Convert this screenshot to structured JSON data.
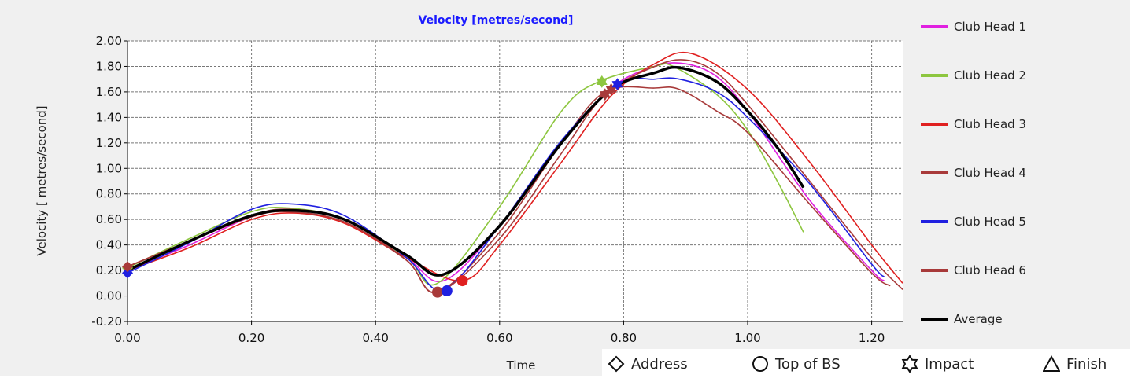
{
  "chart_data": {
    "type": "line",
    "title": "Velocity [metres/second]",
    "xlabel": "Time",
    "ylabel": "Velocity [ metres/second]",
    "xlim": [
      0,
      1.25
    ],
    "ylim": [
      -0.2,
      2.0
    ],
    "xticks": [
      "0.00",
      "0.20",
      "0.40",
      "0.60",
      "0.80",
      "1.00",
      "1.20"
    ],
    "xtick_values": [
      0,
      0.2,
      0.4,
      0.6,
      0.8,
      1.0,
      1.2
    ],
    "yticks": [
      "-0.20",
      "0.00",
      "0.20",
      "0.40",
      "0.60",
      "0.80",
      "1.00",
      "1.20",
      "1.40",
      "1.60",
      "1.80",
      "2.00"
    ],
    "ytick_values": [
      -0.2,
      0,
      0.2,
      0.4,
      0.6,
      0.8,
      1.0,
      1.2,
      1.4,
      1.6,
      1.8,
      2.0
    ],
    "grid": true,
    "legend_position": "right",
    "series": [
      {
        "name": "Club Head 1",
        "color": "#e020e0",
        "x": [
          0,
          0.1,
          0.2,
          0.27,
          0.35,
          0.45,
          0.51,
          0.6,
          0.7,
          0.78,
          0.85,
          0.9,
          0.95,
          1.0,
          1.1,
          1.2,
          1.22
        ],
        "y": [
          0.2,
          0.4,
          0.62,
          0.67,
          0.6,
          0.3,
          0.12,
          0.55,
          1.2,
          1.63,
          1.8,
          1.82,
          1.72,
          1.45,
          0.75,
          0.2,
          0.12
        ]
      },
      {
        "name": "Club Head 2",
        "color": "#8dc63f",
        "x": [
          0,
          0.1,
          0.2,
          0.26,
          0.35,
          0.45,
          0.5,
          0.6,
          0.7,
          0.76,
          0.85,
          0.88,
          0.95,
          1.0,
          1.05,
          1.09
        ],
        "y": [
          0.22,
          0.45,
          0.66,
          0.69,
          0.6,
          0.3,
          0.1,
          0.7,
          1.45,
          1.68,
          1.8,
          1.8,
          1.58,
          1.3,
          0.88,
          0.5
        ]
      },
      {
        "name": "Club Head 3",
        "color": "#e02020",
        "x": [
          0,
          0.1,
          0.2,
          0.27,
          0.35,
          0.45,
          0.54,
          0.6,
          0.7,
          0.78,
          0.85,
          0.91,
          1.0,
          1.1,
          1.2,
          1.25
        ],
        "y": [
          0.2,
          0.38,
          0.6,
          0.65,
          0.57,
          0.3,
          0.12,
          0.4,
          1.05,
          1.57,
          1.82,
          1.9,
          1.62,
          1.05,
          0.4,
          0.1
        ]
      },
      {
        "name": "Club Head 4",
        "color": "#a83a3a",
        "x": [
          0,
          0.1,
          0.2,
          0.26,
          0.35,
          0.45,
          0.5,
          0.6,
          0.7,
          0.77,
          0.85,
          0.89,
          0.95,
          1.0,
          1.1,
          1.2,
          1.23
        ],
        "y": [
          0.23,
          0.43,
          0.62,
          0.66,
          0.58,
          0.28,
          0.03,
          0.5,
          1.2,
          1.6,
          1.63,
          1.62,
          1.45,
          1.28,
          0.72,
          0.18,
          0.08
        ]
      },
      {
        "name": "Club Head 5",
        "color": "#2020e0",
        "x": [
          0,
          0.1,
          0.2,
          0.27,
          0.35,
          0.45,
          0.51,
          0.6,
          0.7,
          0.79,
          0.85,
          0.89,
          0.95,
          1.0,
          1.1,
          1.2,
          1.22
        ],
        "y": [
          0.18,
          0.42,
          0.68,
          0.72,
          0.63,
          0.3,
          0.05,
          0.55,
          1.22,
          1.66,
          1.7,
          1.7,
          1.6,
          1.4,
          0.88,
          0.25,
          0.15
        ]
      },
      {
        "name": "Club Head 6",
        "color": "#a83a3a",
        "x": [
          0,
          0.1,
          0.2,
          0.26,
          0.35,
          0.45,
          0.5,
          0.6,
          0.7,
          0.77,
          0.85,
          0.9,
          0.95,
          1.0,
          1.1,
          1.2,
          1.25
        ],
        "y": [
          0.23,
          0.43,
          0.63,
          0.68,
          0.6,
          0.28,
          0.03,
          0.45,
          1.12,
          1.58,
          1.8,
          1.85,
          1.75,
          1.5,
          0.9,
          0.3,
          0.05
        ]
      },
      {
        "name": "Average",
        "color": "#000000",
        "x": [
          0,
          0.1,
          0.2,
          0.27,
          0.35,
          0.45,
          0.51,
          0.6,
          0.7,
          0.78,
          0.85,
          0.89,
          0.95,
          1.0,
          1.05,
          1.09
        ],
        "y": [
          0.2,
          0.43,
          0.63,
          0.67,
          0.6,
          0.32,
          0.17,
          0.55,
          1.2,
          1.62,
          1.75,
          1.79,
          1.68,
          1.45,
          1.15,
          0.85
        ]
      }
    ],
    "markers": [
      {
        "series": "Club Head 2",
        "type": "address",
        "x": 0,
        "y": 0.22
      },
      {
        "series": "Club Head 5",
        "type": "address",
        "x": 0,
        "y": 0.18
      },
      {
        "series": "Club Head 4",
        "type": "address",
        "x": 0,
        "y": 0.23
      },
      {
        "series": "Club Head 4",
        "type": "top_of_bs",
        "x": 0.5,
        "y": 0.03
      },
      {
        "series": "Club Head 5",
        "type": "top_of_bs",
        "x": 0.515,
        "y": 0.04
      },
      {
        "series": "Club Head 3",
        "type": "top_of_bs",
        "x": 0.54,
        "y": 0.12
      },
      {
        "series": "Club Head 2",
        "type": "impact",
        "x": 0.765,
        "y": 1.68
      },
      {
        "series": "Club Head 4",
        "type": "impact",
        "x": 0.77,
        "y": 1.58
      },
      {
        "series": "Club Head 6",
        "type": "impact",
        "x": 0.78,
        "y": 1.62
      },
      {
        "series": "Club Head 5",
        "type": "impact",
        "x": 0.79,
        "y": 1.66
      }
    ],
    "marker_legend": [
      {
        "type": "address",
        "label": "Address"
      },
      {
        "type": "top_of_bs",
        "label": "Top of BS"
      },
      {
        "type": "impact",
        "label": "Impact"
      },
      {
        "type": "finish",
        "label": "Finish"
      }
    ]
  }
}
